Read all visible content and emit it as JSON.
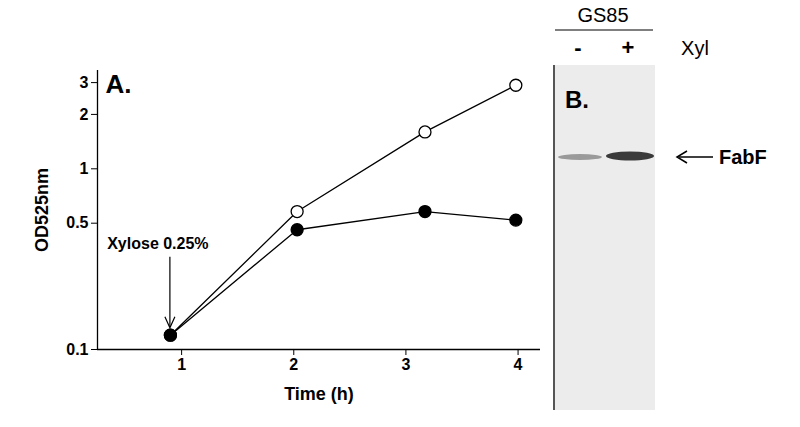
{
  "chart_data": {
    "type": "line",
    "title": "A.",
    "x_label": "Time (h)",
    "y_label": "OD525nm",
    "log": "y",
    "xlim": [
      0.25,
      4.2
    ],
    "xticks": [
      1,
      2,
      3,
      4
    ],
    "ylim": [
      0.1,
      3.5
    ],
    "yticks": [
      0.1,
      0.5,
      1,
      2,
      3
    ],
    "grid": false,
    "series": [
      {
        "color": "#000000",
        "marker": "open circle",
        "line_style": "solid",
        "x": [
          0.9,
          2.03,
          3.17,
          3.98
        ],
        "values": [
          0.12,
          0.58,
          1.6,
          2.9
        ]
      },
      {
        "color": "#000000",
        "marker": "filled circle",
        "line_style": "solid",
        "x": [
          0.9,
          2.03,
          3.17,
          3.98
        ],
        "values": [
          0.12,
          0.46,
          0.58,
          0.52
        ]
      }
    ],
    "annotations": [
      {
        "text": "Xylose 0.25%",
        "x": 0.9,
        "y": 0.12
      }
    ]
  },
  "blot": {
    "label": "B.",
    "header": "GS85",
    "lanes": [
      "-",
      "+"
    ],
    "lane_title": "Xyl",
    "band": "FabF"
  }
}
